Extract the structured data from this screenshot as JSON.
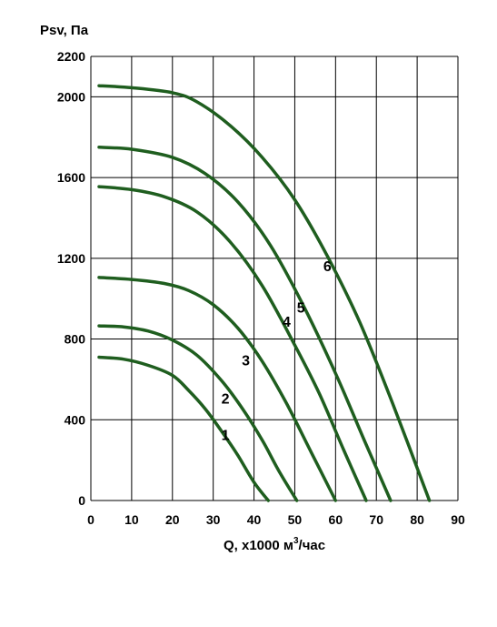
{
  "chart_data": {
    "type": "line",
    "title": "",
    "ylabel": "Psv, Па",
    "xlabel_main": "Q, x1000 м",
    "xlabel_sup": "3",
    "xlabel_tail": "/час",
    "xlim": [
      0,
      90
    ],
    "ylim": [
      0,
      2200
    ],
    "x_ticks": [
      0,
      10,
      20,
      30,
      40,
      50,
      60,
      70,
      80,
      90
    ],
    "y_ticks": [
      0,
      400,
      800,
      1200,
      1600,
      2000,
      2200
    ],
    "grid": true,
    "series_color": "#1f5e1f",
    "series": [
      {
        "name": "1",
        "label_at": [
          33,
          300
        ],
        "x": [
          2,
          8,
          14,
          20,
          24,
          28,
          32,
          36,
          40,
          43.5
        ],
        "y": [
          710,
          700,
          670,
          620,
          545,
          455,
          345,
          225,
          90,
          0
        ]
      },
      {
        "name": "2",
        "label_at": [
          33,
          480
        ],
        "x": [
          2,
          8,
          14,
          20,
          26,
          32,
          37,
          42,
          46,
          50.5
        ],
        "y": [
          865,
          860,
          840,
          795,
          720,
          595,
          460,
          300,
          150,
          0
        ]
      },
      {
        "name": "3",
        "label_at": [
          38,
          670
        ],
        "x": [
          2,
          10,
          18,
          24,
          30,
          36,
          42,
          48,
          54,
          60
        ],
        "y": [
          1105,
          1095,
          1075,
          1040,
          970,
          855,
          690,
          480,
          240,
          0
        ]
      },
      {
        "name": "4",
        "label_at": [
          48,
          860
        ],
        "x": [
          2,
          10,
          18,
          26,
          34,
          42,
          50,
          56,
          62,
          67.5
        ],
        "y": [
          1555,
          1540,
          1505,
          1430,
          1285,
          1065,
          770,
          530,
          250,
          0
        ]
      },
      {
        "name": "5",
        "label_at": [
          51.5,
          930
        ],
        "x": [
          2,
          10,
          20,
          28,
          36,
          44,
          52,
          60,
          67,
          73.5
        ],
        "y": [
          1750,
          1740,
          1700,
          1620,
          1480,
          1265,
          970,
          630,
          300,
          0
        ]
      },
      {
        "name": "6",
        "label_at": [
          58,
          1135
        ],
        "x": [
          2,
          10,
          20,
          26,
          34,
          42,
          50,
          58,
          66,
          74,
          83
        ],
        "y": [
          2055,
          2045,
          2020,
          1975,
          1860,
          1700,
          1490,
          1210,
          880,
          480,
          0
        ]
      }
    ]
  }
}
